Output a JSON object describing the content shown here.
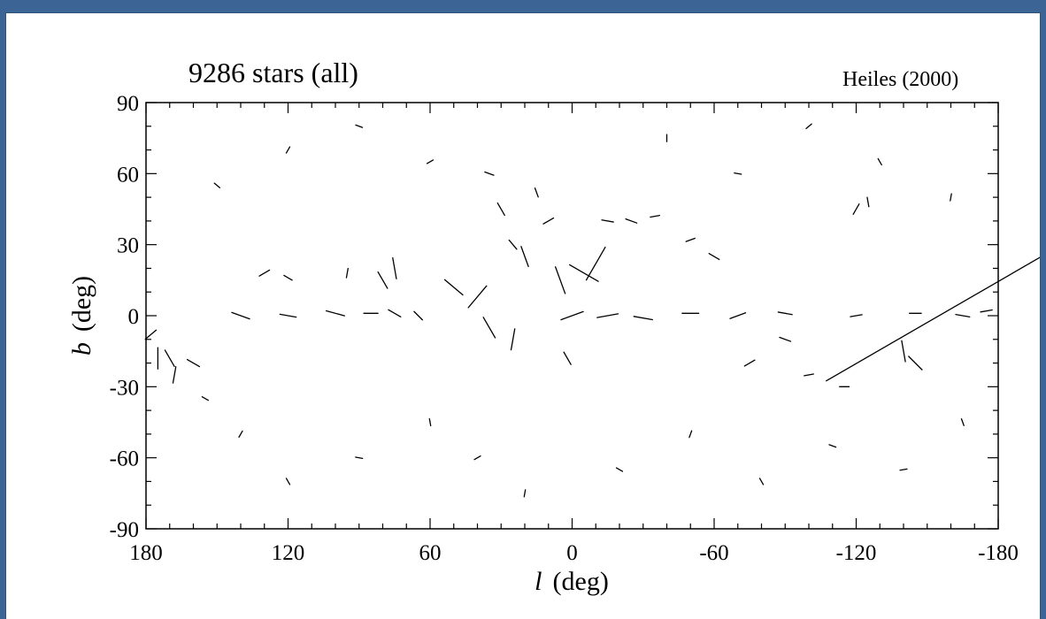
{
  "chart_data": {
    "type": "scatter",
    "title": "9286 stars (all)",
    "subtitle": "Heiles (2000)",
    "xlabel_symbol": "l",
    "xlabel_unit": "(deg)",
    "ylabel_symbol": "b",
    "ylabel_unit": "(deg)",
    "xlim": [
      180,
      -180
    ],
    "ylim": [
      -90,
      90
    ],
    "x_ticks": [
      180,
      120,
      60,
      0,
      -60,
      -120,
      -180
    ],
    "x_tick_labels": [
      "180",
      "120",
      "60",
      "0",
      "-60",
      "-120",
      "-180"
    ],
    "y_ticks": [
      90,
      60,
      30,
      0,
      -30,
      -60,
      -90
    ],
    "y_tick_labels": [
      "90",
      "60",
      "30",
      "0",
      "-30",
      "-60",
      "-90"
    ],
    "grid": false,
    "mark": "polarization vector line segments",
    "series": [
      {
        "values": [
          [
            175,
            -18,
            90,
            9
          ],
          [
            170,
            -18,
            60,
            8
          ],
          [
            168,
            -25,
            100,
            7
          ],
          [
            160,
            -20,
            30,
            6
          ],
          [
            178,
            -8,
            140,
            6
          ],
          [
            140,
            0,
            20,
            8
          ],
          [
            120,
            0,
            10,
            7
          ],
          [
            100,
            1,
            15,
            8
          ],
          [
            85,
            1,
            0,
            6
          ],
          [
            75,
            1,
            30,
            6
          ],
          [
            65,
            0,
            45,
            5
          ],
          [
            0,
            0,
            160,
            10
          ],
          [
            -15,
            0,
            170,
            9
          ],
          [
            -30,
            -1,
            10,
            8
          ],
          [
            -50,
            1,
            0,
            7
          ],
          [
            -70,
            0,
            160,
            7
          ],
          [
            -90,
            1,
            10,
            6
          ],
          [
            -120,
            0,
            170,
            5
          ],
          [
            -145,
            1,
            0,
            5
          ],
          [
            -165,
            0,
            10,
            6
          ],
          [
            -175,
            2,
            170,
            5
          ],
          [
            -5,
            18,
            30,
            14
          ],
          [
            -10,
            22,
            120,
            16
          ],
          [
            5,
            15,
            70,
            12
          ],
          [
            2,
            -18,
            60,
            6
          ],
          [
            -140,
            -15,
            80,
            9
          ],
          [
            -145,
            -20,
            45,
            8
          ],
          [
            130,
            18,
            150,
            5
          ],
          [
            120,
            16,
            30,
            4
          ],
          [
            95,
            18,
            100,
            4
          ],
          [
            80,
            15,
            60,
            8
          ],
          [
            75,
            20,
            80,
            9
          ],
          [
            50,
            12,
            40,
            10
          ],
          [
            40,
            8,
            130,
            12
          ],
          [
            35,
            -5,
            60,
            10
          ],
          [
            25,
            -10,
            100,
            9
          ],
          [
            20,
            25,
            70,
            9
          ],
          [
            25,
            30,
            50,
            5
          ],
          [
            30,
            45,
            60,
            6
          ],
          [
            35,
            60,
            20,
            4
          ],
          [
            15,
            52,
            70,
            4
          ],
          [
            10,
            40,
            150,
            5
          ],
          [
            -15,
            40,
            10,
            5
          ],
          [
            -25,
            40,
            20,
            5
          ],
          [
            -35,
            42,
            170,
            4
          ],
          [
            -50,
            32,
            160,
            4
          ],
          [
            -60,
            25,
            30,
            5
          ],
          [
            -75,
            -20,
            150,
            5
          ],
          [
            -90,
            -10,
            20,
            5
          ],
          [
            -100,
            -25,
            170,
            4
          ],
          [
            -115,
            -30,
            0,
            4
          ],
          [
            -155,
            0,
            150,
            110
          ],
          [
            155,
            -35,
            30,
            3
          ],
          [
            140,
            -50,
            120,
            3
          ],
          [
            120,
            -70,
            60,
            3
          ],
          [
            90,
            -60,
            10,
            3
          ],
          [
            60,
            -45,
            80,
            3
          ],
          [
            40,
            -60,
            150,
            3
          ],
          [
            20,
            -75,
            100,
            3
          ],
          [
            -20,
            -65,
            30,
            3
          ],
          [
            -50,
            -50,
            110,
            3
          ],
          [
            -80,
            -70,
            60,
            3
          ],
          [
            -110,
            -55,
            20,
            3
          ],
          [
            -140,
            -65,
            170,
            3
          ],
          [
            -165,
            -45,
            70,
            3
          ],
          [
            150,
            55,
            40,
            3
          ],
          [
            120,
            70,
            120,
            3
          ],
          [
            90,
            80,
            20,
            3
          ],
          [
            60,
            65,
            150,
            3
          ],
          [
            -40,
            75,
            90,
            3
          ],
          [
            -70,
            60,
            10,
            3
          ],
          [
            -100,
            80,
            140,
            3
          ],
          [
            -130,
            65,
            60,
            3
          ],
          [
            -160,
            50,
            100,
            3
          ],
          [
            -120,
            45,
            120,
            5
          ],
          [
            -125,
            48,
            80,
            4
          ]
        ]
      }
    ]
  }
}
